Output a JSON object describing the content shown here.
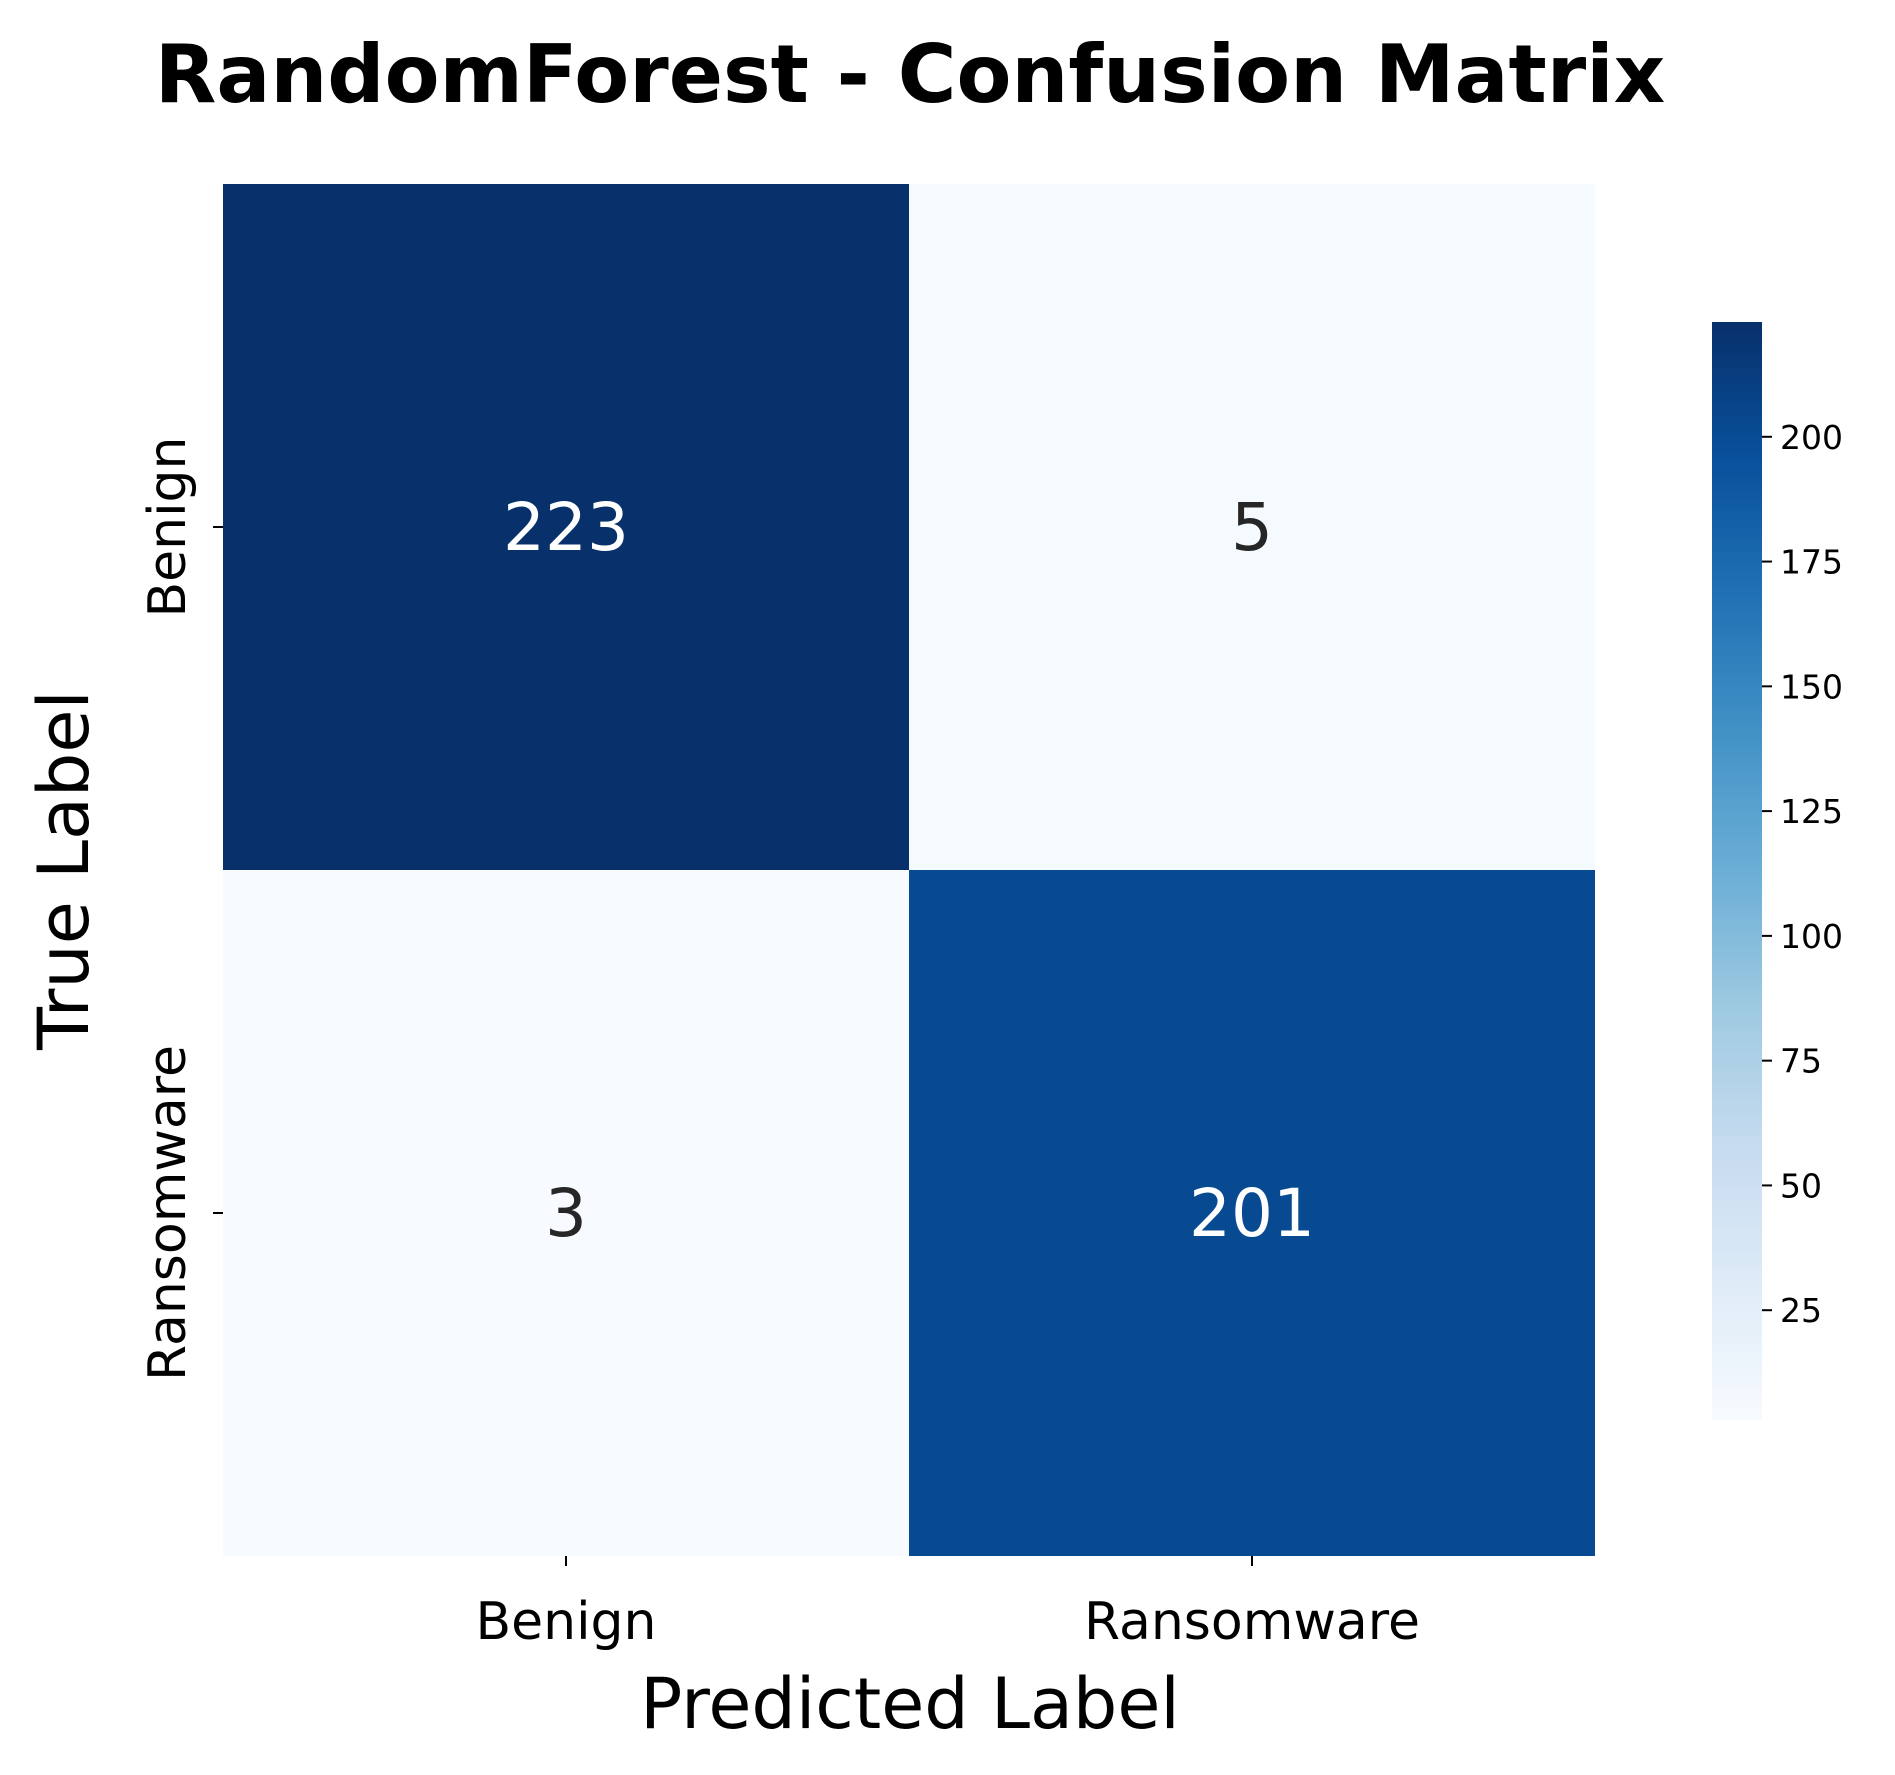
{
  "chart_data": {
    "type": "heatmap",
    "title": "RandomForest - Confusion Matrix",
    "xlabel": "Predicted Label",
    "ylabel": "True Label",
    "x_categories": [
      "Benign",
      "Ransomware"
    ],
    "y_categories": [
      "Benign",
      "Ransomware"
    ],
    "values": [
      [
        223,
        5
      ],
      [
        3,
        201
      ]
    ],
    "colormap": "Blues",
    "colorbar": {
      "min": 3,
      "max": 223,
      "ticks": [
        25,
        50,
        75,
        100,
        125,
        150,
        175,
        200
      ]
    },
    "text_colors": {
      "light": "#ffffff",
      "dark": "#262626"
    },
    "grid": false,
    "legend": "colorbar right"
  }
}
